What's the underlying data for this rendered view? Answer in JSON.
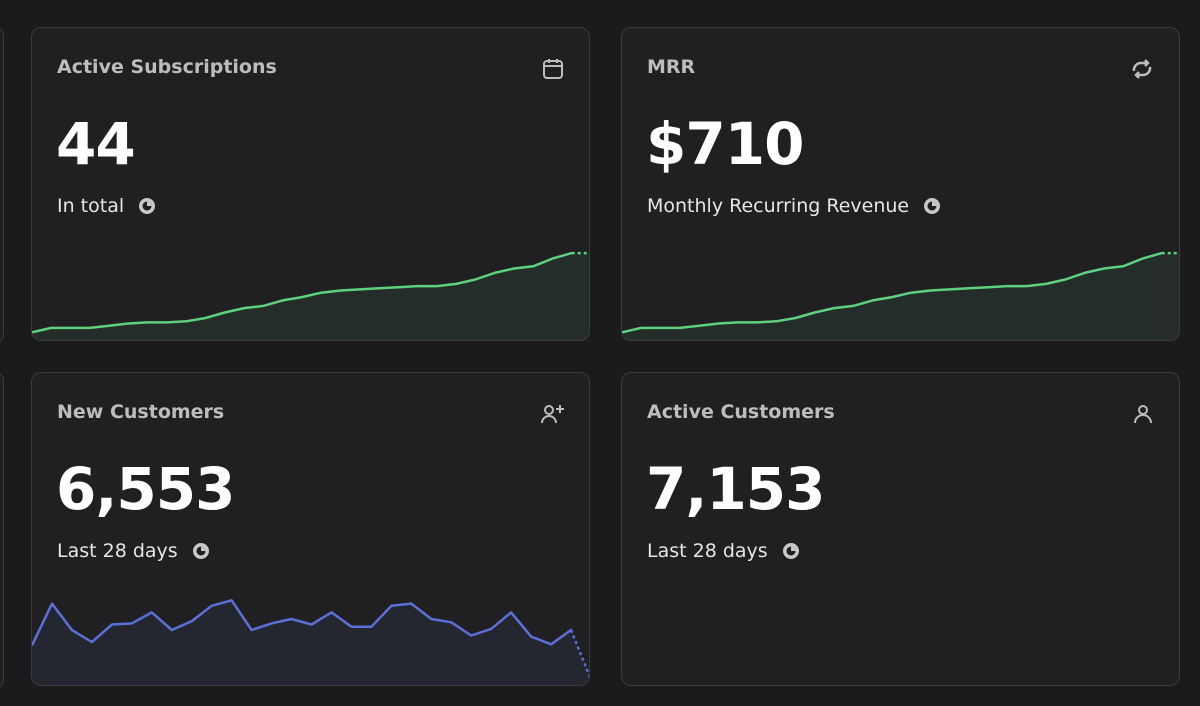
{
  "cards": [
    {
      "title": "Active Subscriptions",
      "value": "44",
      "subtitle": "In total",
      "sparkline": {
        "values": [
          7,
          11,
          11,
          11,
          13,
          15,
          16,
          16,
          17,
          20,
          25,
          29,
          31,
          36,
          39,
          43,
          45,
          46,
          47,
          48,
          49,
          49,
          51,
          55,
          61,
          65,
          67,
          74,
          79,
          79
        ],
        "ylim": [
          0,
          100
        ],
        "color": "#5fd07f"
      }
    },
    {
      "title": "MRR",
      "value": "$710",
      "subtitle": "Monthly Recurring Revenue",
      "sparkline": {
        "values": [
          7,
          11,
          11,
          11,
          13,
          15,
          16,
          16,
          17,
          20,
          25,
          29,
          31,
          36,
          39,
          43,
          45,
          46,
          47,
          48,
          49,
          49,
          51,
          55,
          61,
          65,
          67,
          74,
          79,
          79
        ],
        "ylim": [
          0,
          100
        ],
        "color": "#5fd07f"
      }
    },
    {
      "title": "New Customers",
      "value": "6,553",
      "subtitle": "Last 28 days",
      "sparkline": {
        "values": [
          36,
          74,
          50,
          39,
          55,
          56,
          66,
          50,
          58,
          72,
          77,
          50,
          56,
          60,
          55,
          66,
          53,
          53,
          72,
          74,
          60,
          57,
          45,
          51,
          66,
          44,
          37,
          50,
          5
        ],
        "ylim": [
          0,
          100
        ],
        "color": "#5b6fd6"
      }
    },
    {
      "title": "Active Customers",
      "value": "7,153",
      "subtitle": "Last 28 days"
    }
  ]
}
